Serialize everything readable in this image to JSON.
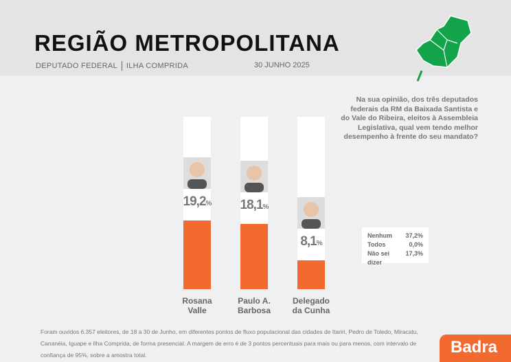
{
  "header": {
    "title": "REGIÃO METROPOLITANA",
    "subtitle_left": "DEPUTADO FEDERAL",
    "subtitle_right": "ILHA COMPRIDA",
    "date": "30 JUNHO 2025"
  },
  "question": "Na sua opinião, dos três deputados federais da RM da Baixada Santista e do Vale do Ribeira, eleitos à Assembleia Legislativa, qual vem tendo melhor desempenho à frente do seu mandato?",
  "chart_data": {
    "type": "bar",
    "title": "REGIÃO METROPOLITANA",
    "categories": [
      "Rosana Valle",
      "Paulo A. Barbosa",
      "Delegado da Cunha"
    ],
    "values": [
      19.2,
      18.1,
      8.1
    ],
    "value_labels": [
      "19,2",
      "18,1",
      "8,1"
    ],
    "unit": "%",
    "name_lines": [
      [
        "Rosana",
        "Valle"
      ],
      [
        "Paulo A.",
        "Barbosa"
      ],
      [
        "Delegado",
        "da Cunha"
      ]
    ],
    "ylim": [
      0,
      60
    ],
    "color": "#f26a2f"
  },
  "others": [
    {
      "label": "Nenhum",
      "value": "37,2%"
    },
    {
      "label": "Todos",
      "value": "0,0%"
    },
    {
      "label": "Não sei dizer",
      "value": "17,3%"
    }
  ],
  "footer": "Foram ouvidos 6.357 eleitores, de 18 a 30 de Junho, em diferentes pontos de fluxo populacional das cidades de Itariri, Pedro de Toledo, Miracatu, Cananéia, Iguape e Ilha Comprida, de forma presencial. A margem de erro é de 3 pontos percentuais para mais ou para menos, com intervalo de confiança de 95%, sobre a amostra total.",
  "brand": "Badra"
}
